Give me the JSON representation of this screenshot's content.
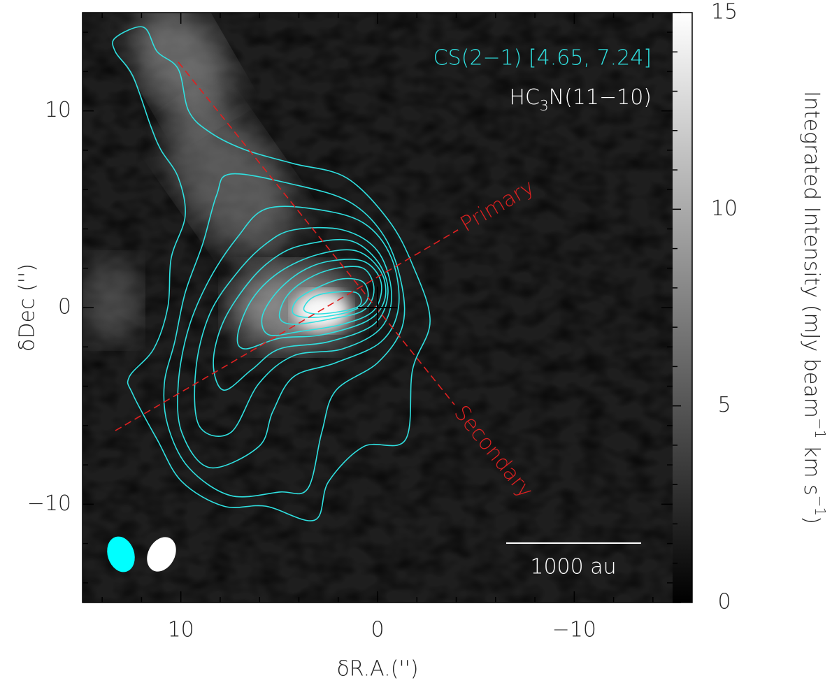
{
  "chart_data": {
    "type": "contour",
    "xlabel": "δR.A.('')",
    "ylabel": "δDec ('')",
    "xlim": [
      15,
      -15
    ],
    "ylim": [
      -15,
      15
    ],
    "xticks": [
      10,
      0,
      {
        "value": -10,
        "label": "−10"
      }
    ],
    "yticks": [
      {
        "value": -10,
        "label": "−10"
      },
      0,
      10
    ],
    "xticks_minor": [
      14,
      12,
      8,
      6,
      4,
      2,
      -2,
      -4,
      -6,
      -8,
      -12,
      -14
    ],
    "yticks_minor": [
      -14,
      -12,
      -8,
      -6,
      -4,
      -2,
      2,
      4,
      6,
      8,
      12,
      14
    ],
    "contour_label": "CS(2−1) [4.65, 7.24]",
    "contour_color": "#2fe0e0",
    "image_label": [
      {
        "text": "HC"
      },
      {
        "text": "3",
        "sub": true
      },
      {
        "text": "N(11−10)"
      }
    ],
    "scale_label": "1000 au",
    "source": [
      0,
      0
    ],
    "cuts": [
      {
        "name": "Primary",
        "x": [
          13.33,
          -4.09
        ],
        "y": [
          -6.26,
          3.95
        ]
      },
      {
        "name": "Secondary",
        "x": [
          10.13,
          -3.91
        ],
        "y": [
          12.48,
          -4.94
        ]
      }
    ],
    "cut_color": "#e02020",
    "colorbar": {
      "label": [
        {
          "text": "Integrated Intensity (mJy beam"
        },
        {
          "text": "−1",
          "sup": true
        },
        {
          "text": " km s"
        },
        {
          "text": "−1",
          "sup": true
        },
        {
          "text": ")"
        }
      ],
      "lim": [
        0,
        15
      ],
      "ticks": [
        0,
        5,
        10,
        15
      ],
      "ticks_minor": [
        1,
        2,
        3,
        4,
        6,
        7,
        8,
        9,
        11,
        12,
        13,
        14
      ]
    },
    "contours": [
      {
        "x": [
          13.33,
          11.91,
          11.2,
          10.13,
          9.6,
          8.53,
          6.75,
          4.27,
          1.6,
          -0.53,
          -1.78,
          -2.67,
          -1.78,
          -1.42,
          0.71,
          2.49,
          3.2,
          5.69,
          7.82,
          9.95,
          11.2,
          12.44,
          12.62,
          11.38,
          10.66,
          10.49,
          9.78,
          10.13,
          11.02,
          11.55,
          12.44,
          13.33
        ],
        "y": [
          13.72,
          14.26,
          13.01,
          12.12,
          9.99,
          8.92,
          8.03,
          7.32,
          6.61,
          4.48,
          2.17,
          -0.68,
          -3.16,
          -6.72,
          -7.07,
          -8.85,
          -10.81,
          -10.1,
          -10.1,
          -8.85,
          -6.72,
          -4.41,
          -3.52,
          -2.1,
          0.04,
          2.52,
          4.66,
          6.61,
          8.03,
          9.28,
          11.77,
          13.01
        ]
      },
      {
        "x": [
          7.47,
          4.27,
          1.42,
          -0.36,
          -1.24,
          -1.24,
          0,
          2.13,
          2.84,
          3.55,
          4.98,
          7.47,
          9.6,
          10.66,
          10.84,
          10.31,
          9.78,
          8.89,
          8.18
        ],
        "y": [
          6.79,
          6.26,
          5.37,
          3.59,
          1.1,
          -1.03,
          -2.81,
          -4.23,
          -6.36,
          -9.21,
          -9.38,
          -9.56,
          -8.14,
          -6.01,
          -3.87,
          -1.74,
          0.75,
          3.23,
          5.72
        ]
      },
      {
        "x": [
          5.69,
          3.2,
          0.71,
          -0.71,
          -1.07,
          -0.18,
          2.13,
          4.27,
          5.33,
          6.04,
          8.53,
          9.95,
          10.13,
          9.6,
          8.53,
          7.11
        ],
        "y": [
          5.01,
          5.01,
          4.3,
          2.52,
          0.04,
          -1.74,
          -2.81,
          -3.52,
          -5.3,
          -7.07,
          -8.14,
          -6.36,
          -3.87,
          -1.03,
          1.46,
          3.59
        ]
      },
      {
        "x": [
          4.27,
          1.78,
          0,
          -0.71,
          -0.18,
          1.78,
          4.27,
          6.04,
          7.47,
          9.07,
          9.24,
          8.53,
          7.11,
          5.69
        ],
        "y": [
          3.95,
          3.95,
          2.88,
          0.75,
          -1.03,
          -2.1,
          -2.45,
          -3.87,
          -6.36,
          -6.01,
          -3.16,
          -0.32,
          1.81,
          3.23
        ]
      },
      {
        "x": [
          3.55,
          1.42,
          0,
          -0.53,
          0.18,
          2.49,
          4.98,
          6.4,
          7.82,
          8.35,
          7.82,
          6.4,
          4.98
        ],
        "y": [
          3.23,
          3.41,
          2.35,
          0.75,
          -0.85,
          -1.74,
          -2.1,
          -3.16,
          -4.2,
          -2.81,
          -0.68,
          1.46,
          2.7
        ]
      },
      {
        "x": [
          3.02,
          1.07,
          -0.18,
          -0.36,
          0.53,
          2.84,
          4.98,
          6.75,
          7.11,
          6.4,
          4.98
        ],
        "y": [
          2.7,
          2.88,
          1.81,
          0.39,
          -0.68,
          -1.39,
          -1.56,
          -2.1,
          -1.39,
          0.39,
          1.81
        ]
      },
      {
        "x": [
          2.49,
          0.71,
          -0.18,
          0.18,
          1.78,
          3.91,
          5.51,
          5.87,
          5.15,
          3.91
        ],
        "y": [
          2.35,
          2.35,
          1.28,
          -0.14,
          -0.85,
          -1.21,
          -1.39,
          -0.5,
          0.75,
          1.81
        ]
      },
      {
        "x": [
          2.13,
          0.71,
          0.18,
          0.71,
          2.49,
          4.27,
          4.98,
          4.62,
          3.55
        ],
        "y": [
          1.99,
          1.99,
          0.92,
          -0.14,
          -0.6,
          -0.85,
          -0.5,
          0.57,
          1.46
        ]
      },
      {
        "x": [
          1.78,
          0.71,
          0.53,
          1.42,
          3.2,
          4.27,
          4.09,
          3.02
        ],
        "y": [
          1.46,
          1.28,
          0.39,
          -0.21,
          -0.5,
          -0.32,
          0.39,
          1.03
        ]
      },
      {
        "x": [
          2.49,
          1.07,
          1.0,
          2.84,
          3.73,
          3.38
        ],
        "y": [
          0.75,
          0.75,
          0.04,
          -0.32,
          -0.14,
          0.46
        ]
      }
    ]
  }
}
